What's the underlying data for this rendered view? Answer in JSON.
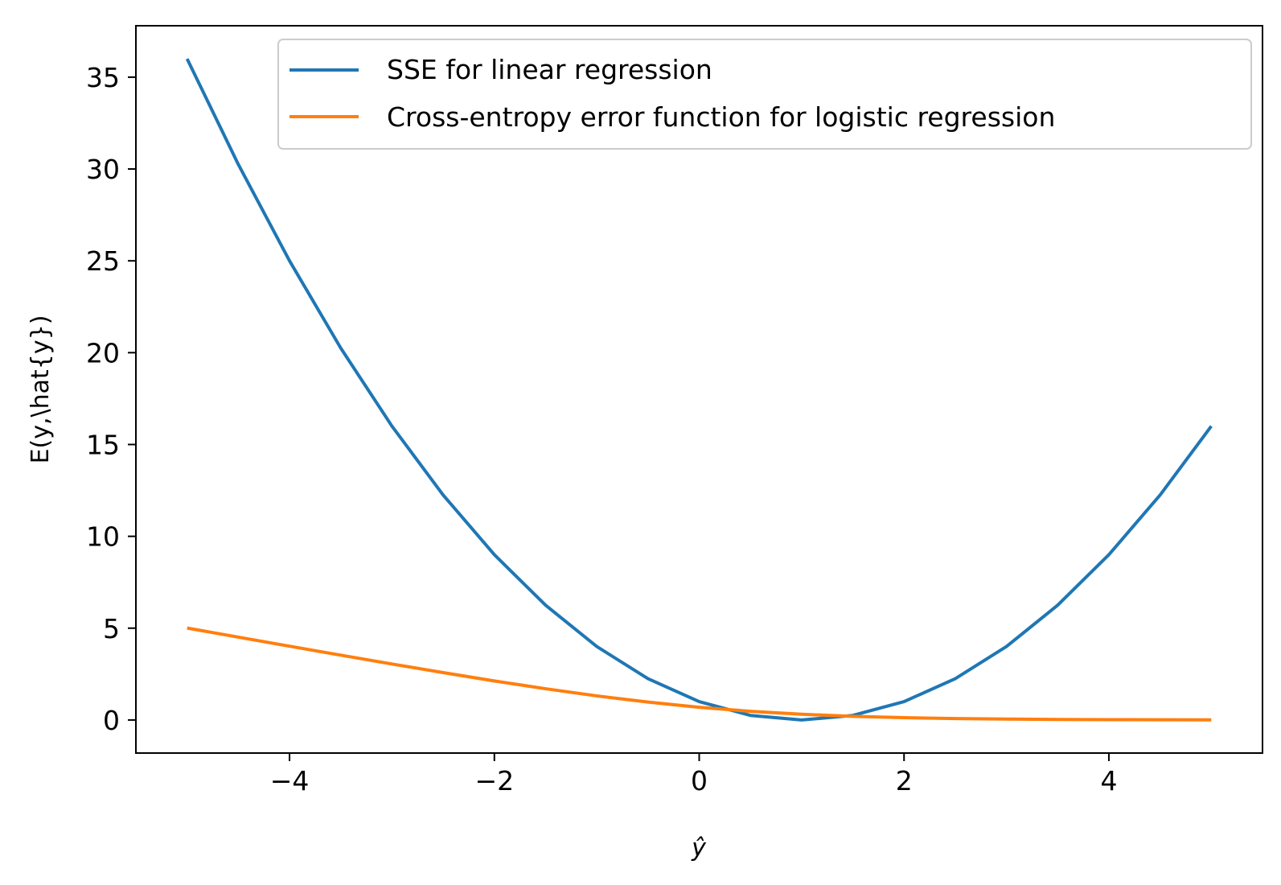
{
  "chart_data": {
    "type": "line",
    "xlabel": "ŷ",
    "ylabel": "E(y,\\hat{y})",
    "xlim": [
      -5.5,
      5.5
    ],
    "ylim": [
      -1.8,
      37.8
    ],
    "x_ticks": [
      -4,
      -2,
      0,
      2,
      4
    ],
    "x_tick_labels": [
      "−4",
      "−2",
      "0",
      "2",
      "4"
    ],
    "y_ticks": [
      0,
      5,
      10,
      15,
      20,
      25,
      30,
      35
    ],
    "y_tick_labels": [
      "0",
      "5",
      "10",
      "15",
      "20",
      "25",
      "30",
      "35"
    ],
    "grid": false,
    "legend_position": "top-right",
    "series": [
      {
        "name": "SSE for linear regression",
        "color": "#1f77b4",
        "x": [
          -5.0,
          -4.5,
          -4.0,
          -3.5,
          -3.0,
          -2.5,
          -2.0,
          -1.5,
          -1.0,
          -0.5,
          0.0,
          0.5,
          1.0,
          1.5,
          2.0,
          2.5,
          3.0,
          3.5,
          4.0,
          4.5,
          5.0
        ],
        "y": [
          36.0,
          30.25,
          25.0,
          20.25,
          16.0,
          12.25,
          9.0,
          6.25,
          4.0,
          2.25,
          1.0,
          0.25,
          0.0,
          0.25,
          1.0,
          2.25,
          4.0,
          6.25,
          9.0,
          12.25,
          16.0
        ]
      },
      {
        "name": "Cross-entropy error function for logistic regression",
        "color": "#ff7f0e",
        "x": [
          -5.0,
          -4.5,
          -4.0,
          -3.5,
          -3.0,
          -2.5,
          -2.0,
          -1.5,
          -1.0,
          -0.5,
          0.0,
          0.5,
          1.0,
          1.5,
          2.0,
          2.5,
          3.0,
          3.5,
          4.0,
          4.5,
          5.0
        ],
        "y": [
          5.007,
          4.511,
          4.018,
          3.53,
          3.049,
          2.579,
          2.127,
          1.701,
          1.313,
          0.974,
          0.693,
          0.474,
          0.313,
          0.201,
          0.127,
          0.079,
          0.049,
          0.03,
          0.018,
          0.011,
          0.007
        ]
      }
    ]
  }
}
